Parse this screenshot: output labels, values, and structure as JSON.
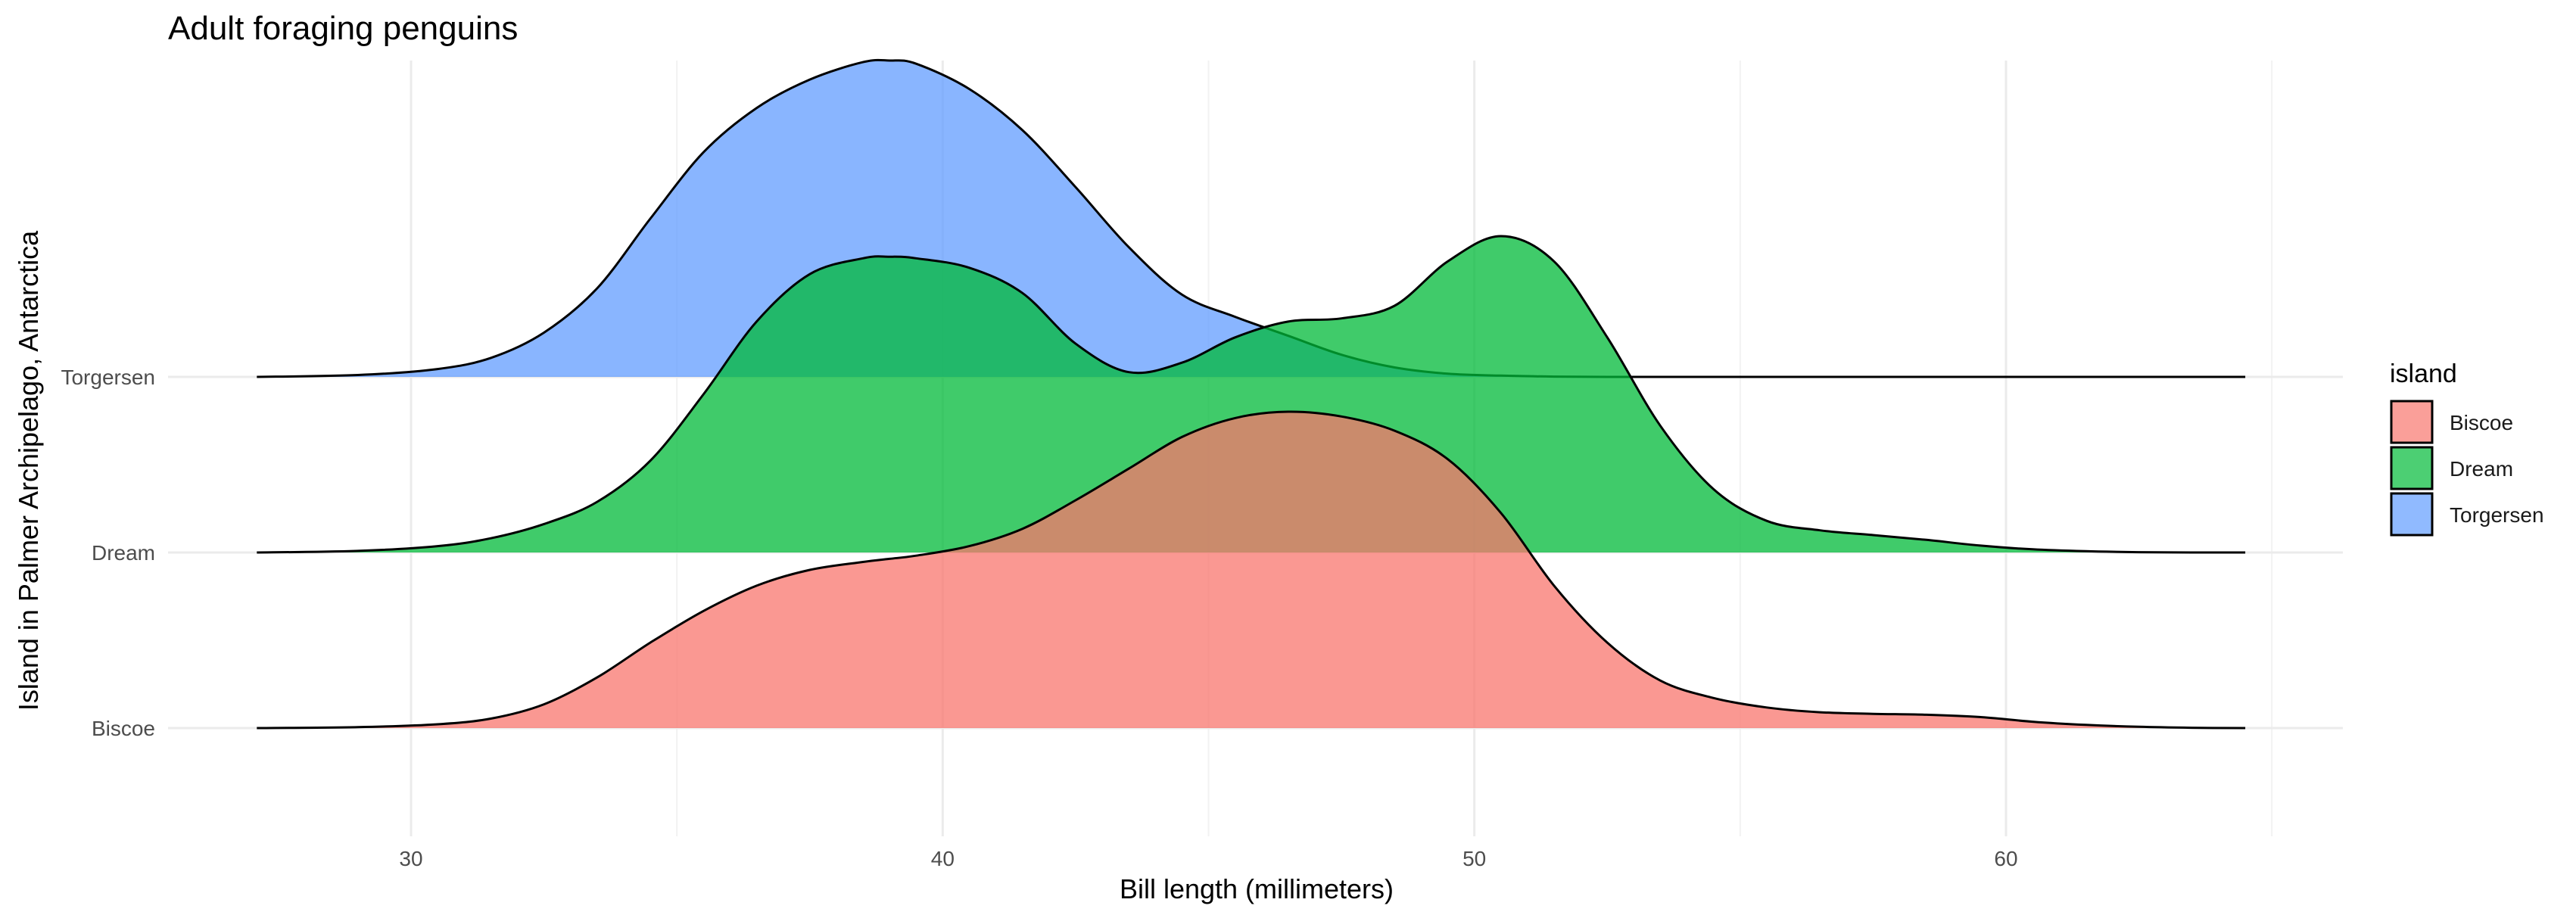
{
  "chart_data": {
    "type": "ridgeline",
    "title": "Adult foraging penguins",
    "xlabel": "Bill length (millimeters)",
    "ylabel": "Island in Palmer Archipelago, Antarctica",
    "xlim": [
      25.5,
      66
    ],
    "x_ticks": [
      30,
      40,
      50,
      60
    ],
    "x_tick_labels": [
      "30",
      "40",
      "50",
      "60"
    ],
    "categories": [
      "Biscoe",
      "Dream",
      "Torgersen"
    ],
    "grid": true,
    "legend": {
      "title": "island",
      "position": "right"
    },
    "x": [
      27.1,
      29,
      30.5,
      31.5,
      32.5,
      33.5,
      34.5,
      35.5,
      36.5,
      37.5,
      38.5,
      39,
      39.5,
      40.5,
      41.5,
      42.5,
      43.5,
      44.5,
      45.5,
      46.5,
      47.5,
      48.5,
      49.5,
      50.5,
      51.5,
      52.5,
      53.5,
      54.5,
      55.5,
      56.5,
      57.5,
      58.5,
      59.5,
      60.5,
      61.5,
      62.5,
      63.5,
      64.5
    ],
    "series": [
      {
        "name": "Biscoe",
        "color": "#F8766D",
        "density": [
          0,
          0.003,
          0.012,
          0.03,
          0.075,
          0.16,
          0.27,
          0.37,
          0.45,
          0.5,
          0.525,
          0.535,
          0.545,
          0.575,
          0.63,
          0.72,
          0.82,
          0.92,
          0.98,
          1.0,
          0.985,
          0.94,
          0.85,
          0.68,
          0.45,
          0.27,
          0.15,
          0.095,
          0.065,
          0.05,
          0.045,
          0.042,
          0.035,
          0.02,
          0.01,
          0.004,
          0.001,
          0
        ]
      },
      {
        "name": "Dream",
        "color": "#00BA38",
        "density": [
          0,
          0.005,
          0.02,
          0.045,
          0.09,
          0.16,
          0.29,
          0.5,
          0.73,
          0.88,
          0.93,
          0.935,
          0.93,
          0.9,
          0.82,
          0.66,
          0.57,
          0.6,
          0.68,
          0.73,
          0.74,
          0.78,
          0.92,
          1.0,
          0.92,
          0.68,
          0.4,
          0.2,
          0.1,
          0.07,
          0.055,
          0.04,
          0.022,
          0.01,
          0.004,
          0.001,
          0,
          0
        ]
      },
      {
        "name": "Torgersen",
        "color": "#619CFF",
        "density": [
          0,
          0.006,
          0.025,
          0.06,
          0.14,
          0.28,
          0.5,
          0.71,
          0.85,
          0.94,
          0.995,
          1.0,
          0.99,
          0.91,
          0.78,
          0.6,
          0.41,
          0.26,
          0.19,
          0.13,
          0.07,
          0.03,
          0.01,
          0.004,
          0.001,
          0,
          0,
          0,
          0,
          0,
          0,
          0,
          0,
          0,
          0,
          0,
          0,
          0
        ]
      }
    ]
  }
}
